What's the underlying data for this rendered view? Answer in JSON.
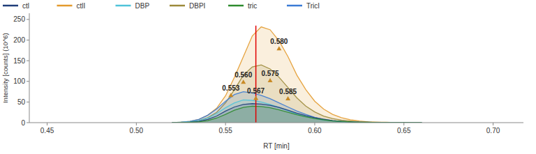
{
  "chart_data": {
    "type": "area",
    "x_label": "RT [min]",
    "y_label": "Intensity [counts] (10^6)",
    "x": [
      0.52,
      0.525,
      0.53,
      0.535,
      0.54,
      0.545,
      0.55,
      0.555,
      0.56,
      0.565,
      0.57,
      0.575,
      0.58,
      0.585,
      0.59,
      0.595,
      0.6,
      0.605,
      0.61,
      0.615,
      0.62,
      0.625,
      0.63,
      0.635,
      0.64,
      0.645,
      0.65,
      0.655,
      0.66
    ],
    "series": [
      {
        "name": "ctl",
        "color": "#1f3d7a",
        "values": [
          0,
          0,
          1,
          3,
          8,
          16,
          28,
          38,
          44,
          46,
          45,
          42,
          37,
          30,
          23,
          17,
          12,
          8,
          5,
          3,
          2,
          1,
          1,
          0,
          0,
          0,
          0,
          0,
          0
        ]
      },
      {
        "name": "ctlI",
        "color": "#e39a2d",
        "values": [
          0,
          1,
          3,
          8,
          18,
          35,
          65,
          110,
          160,
          210,
          232,
          225,
          198,
          160,
          115,
          80,
          52,
          33,
          20,
          12,
          7,
          4,
          2,
          1,
          1,
          0,
          0,
          0,
          0
        ]
      },
      {
        "name": "DBP",
        "color": "#4fc3d9",
        "values": [
          0,
          1,
          2,
          5,
          11,
          22,
          36,
          48,
          55,
          54,
          50,
          44,
          37,
          29,
          21,
          15,
          10,
          6,
          4,
          2,
          1,
          1,
          0,
          0,
          0,
          0,
          0,
          0,
          0
        ]
      },
      {
        "name": "DBPI",
        "color": "#9c8a3a",
        "values": [
          0,
          1,
          2,
          5,
          12,
          25,
          48,
          80,
          115,
          135,
          140,
          130,
          110,
          85,
          60,
          40,
          26,
          16,
          10,
          6,
          4,
          2,
          1,
          1,
          0,
          0,
          0,
          0,
          0
        ]
      },
      {
        "name": "tric",
        "color": "#2e8b2e",
        "values": [
          0,
          0,
          1,
          2,
          5,
          11,
          20,
          30,
          37,
          40,
          39,
          36,
          31,
          25,
          19,
          14,
          10,
          7,
          4,
          3,
          2,
          1,
          1,
          0,
          0,
          0,
          0,
          0,
          0
        ]
      },
      {
        "name": "TricI",
        "color": "#3a7bd5",
        "values": [
          0,
          1,
          3,
          8,
          18,
          33,
          52,
          68,
          75,
          72,
          66,
          58,
          48,
          38,
          28,
          20,
          13,
          8,
          5,
          3,
          2,
          1,
          0,
          0,
          0,
          0,
          0,
          0,
          0
        ]
      }
    ],
    "annotations": [
      {
        "x": 0.58,
        "y": 180,
        "label": "0.580"
      },
      {
        "x": 0.56,
        "y": 99,
        "label": "0.560"
      },
      {
        "x": 0.575,
        "y": 103,
        "label": "0.575"
      },
      {
        "x": 0.553,
        "y": 67,
        "label": "0.553"
      },
      {
        "x": 0.567,
        "y": 60,
        "label": "0.567"
      },
      {
        "x": 0.585,
        "y": 59,
        "label": "0.585"
      }
    ],
    "cursor": {
      "x": 0.567,
      "y": 235,
      "color": "#e00000"
    },
    "xlim": [
      0.44,
      0.717
    ],
    "ylim": [
      0,
      265
    ],
    "xticks": [
      {
        "value": 0.45,
        "label": "0.45"
      },
      {
        "value": 0.5,
        "label": "0.50"
      },
      {
        "value": 0.55,
        "label": "0.55"
      },
      {
        "value": 0.6,
        "label": "0.60"
      },
      {
        "value": 0.65,
        "label": "0.65"
      },
      {
        "value": 0.7,
        "label": "0.70"
      }
    ],
    "yticks": [
      0,
      50,
      100,
      150,
      200,
      250
    ],
    "grid": false,
    "legend": "top"
  }
}
